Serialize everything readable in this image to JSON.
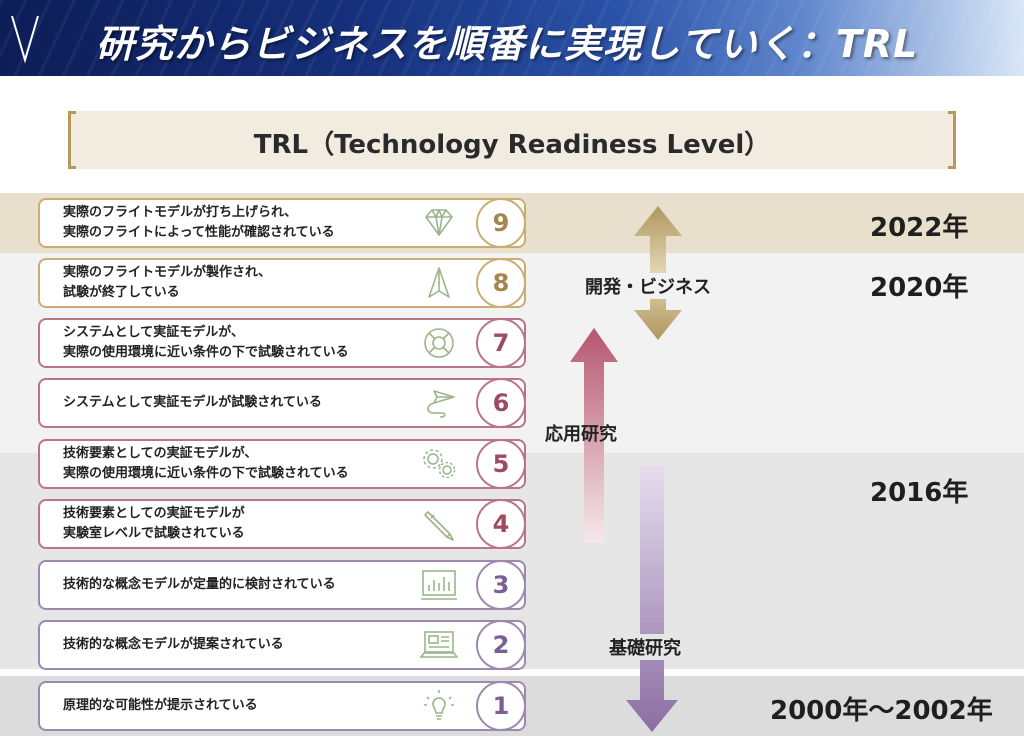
{
  "header": {
    "title": "研究からビジネスを順番に実現していく：TRL"
  },
  "trl_title": "TRL（Technology Readiness Level）",
  "levels": [
    {
      "num": "9",
      "text": "実際のフライトモデルが打ち上げられ、\n実際のフライトによって性能が確認されている",
      "icon": "diamond-icon"
    },
    {
      "num": "8",
      "text": "実際のフライトモデルが製作され、\n試験が終了している",
      "icon": "paper-plane-icon"
    },
    {
      "num": "7",
      "text": "システムとして実証モデルが、\n実際の使用環境に近い条件の下で試験されている",
      "icon": "lifebuoy-icon"
    },
    {
      "num": "6",
      "text": "システムとして実証モデルが試験されている",
      "icon": "send-icon"
    },
    {
      "num": "5",
      "text": "技術要素としての実証モデルが、\n実際の使用環境に近い条件の下で試験されている",
      "icon": "gears-icon"
    },
    {
      "num": "4",
      "text": "技術要素としての実証モデルが\n実験室レベルで試験されている",
      "icon": "pencil-icon"
    },
    {
      "num": "3",
      "text": "技術的な概念モデルが定量的に検討されている",
      "icon": "bar-chart-icon"
    },
    {
      "num": "2",
      "text": "技術的な概念モデルが提案されている",
      "icon": "laptop-icon"
    },
    {
      "num": "1",
      "text": "原理的な可能性が提示されている",
      "icon": "lightbulb-icon"
    }
  ],
  "phases": {
    "business": "開発・ビジネス",
    "applied": "応用研究",
    "basic": "基礎研究"
  },
  "years": {
    "y2022": "2022年",
    "y2020": "2020年",
    "y2016": "2016年",
    "y2000": "2000年〜2002年"
  },
  "colors": {
    "gold": "#c9ad72",
    "rose": "#b97585",
    "purple": "#9d88b0",
    "header_dark": "#0d1d57",
    "band_tan": "#e8dfcc"
  }
}
